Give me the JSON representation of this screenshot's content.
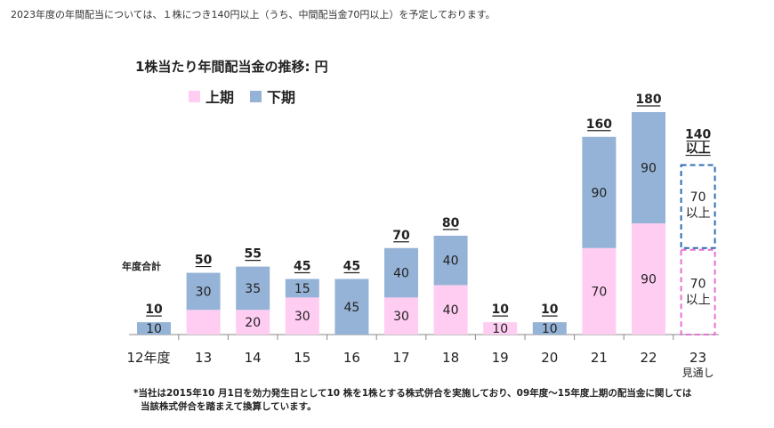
{
  "top_note": "2023年度の年間配当については、１株につき140円以上（うち、中間配当金70円以上）を予定しております。",
  "footnote": {
    "line1": "*当社は2015年10 月1日を効力発生日として10 株を1株とする株式併合を実施しており、09年度～15年度上期の配当金に関しては",
    "line2": "当該株式併合を踏まえて換算しています。"
  },
  "colors": {
    "first_half": "#FFCCF2",
    "second_half": "#95B3D7",
    "forecast_first_border": "#E571D0",
    "forecast_second_border": "#2E6DB4",
    "axis": "#888888"
  },
  "chart_data": {
    "type": "bar",
    "stacked": true,
    "title": "1株当たり年間配当金の推移: 円",
    "total_caption": "年度合計",
    "categories": [
      "12年度",
      "13",
      "14",
      "15",
      "16",
      "17",
      "18",
      "19",
      "20",
      "21",
      "22",
      "23"
    ],
    "category_sublabels": [
      "",
      "",
      "",
      "",
      "",
      "",
      "",
      "",
      "",
      "",
      "",
      "見通し"
    ],
    "series": [
      {
        "name": "上期",
        "values": [
          0,
          20,
          20,
          30,
          0,
          30,
          40,
          10,
          0,
          70,
          90,
          70
        ],
        "labels": [
          "",
          "",
          "20",
          "30",
          "",
          "30",
          "40",
          "10",
          "",
          "70",
          "90",
          "70\n以上"
        ]
      },
      {
        "name": "下期",
        "values": [
          10,
          30,
          35,
          15,
          45,
          40,
          40,
          0,
          10,
          90,
          90,
          70
        ],
        "labels": [
          "10",
          "30",
          "35",
          "15",
          "45",
          "40",
          "40",
          "",
          "10",
          "90",
          "90",
          "70\n以上"
        ]
      }
    ],
    "totals": [
      "10",
      "50",
      "55",
      "45",
      "45",
      "70",
      "80",
      "10",
      "10",
      "160",
      "180",
      "140\n以上"
    ],
    "forecast_category": "23",
    "ylim": [
      0,
      180
    ],
    "legend_position": "top-left",
    "grid": false
  }
}
